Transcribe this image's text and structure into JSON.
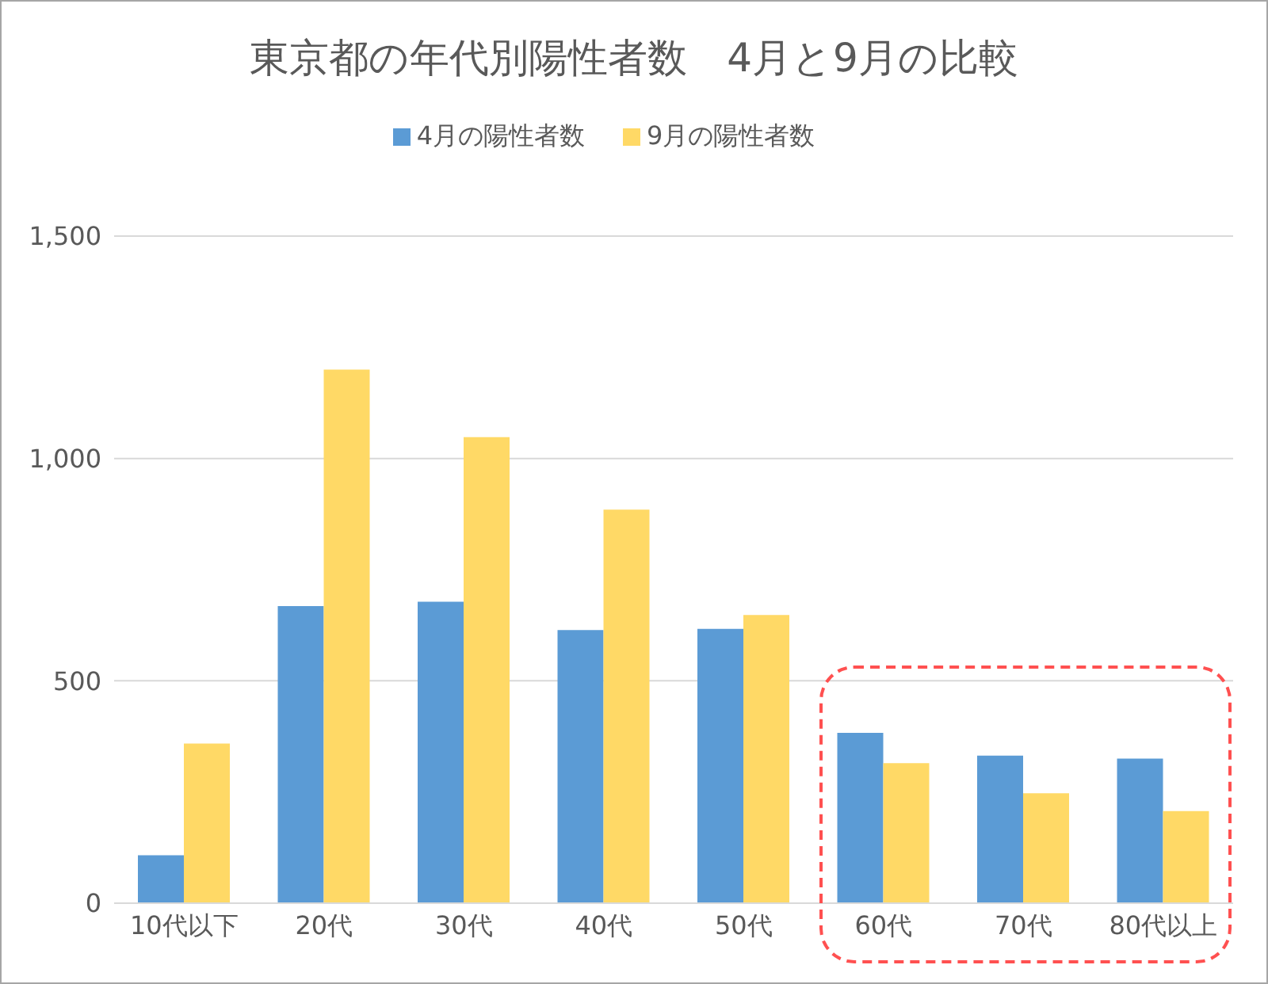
{
  "chart_data": {
    "type": "bar",
    "title": "東京都の年代別陽性者数　4月と9月の比較",
    "categories": [
      "10代以下",
      "20代",
      "30代",
      "40代",
      "50代",
      "60代",
      "70代",
      "80代以上"
    ],
    "series": [
      {
        "name": "4月の陽性者数",
        "color": "#5b9bd5",
        "values": [
          108,
          668,
          678,
          614,
          617,
          383,
          332,
          325
        ]
      },
      {
        "name": "9月の陽性者数",
        "color": "#ffd966",
        "values": [
          359,
          1200,
          1048,
          885,
          648,
          315,
          247,
          207
        ]
      }
    ],
    "ylim": [
      0,
      1500
    ],
    "yticks": [
      {
        "value": 0,
        "label": "0"
      },
      {
        "value": 500,
        "label": "500"
      },
      {
        "value": 1000,
        "label": "1,000"
      },
      {
        "value": 1500,
        "label": "1,500"
      }
    ],
    "grid": "y",
    "legend": "top"
  }
}
